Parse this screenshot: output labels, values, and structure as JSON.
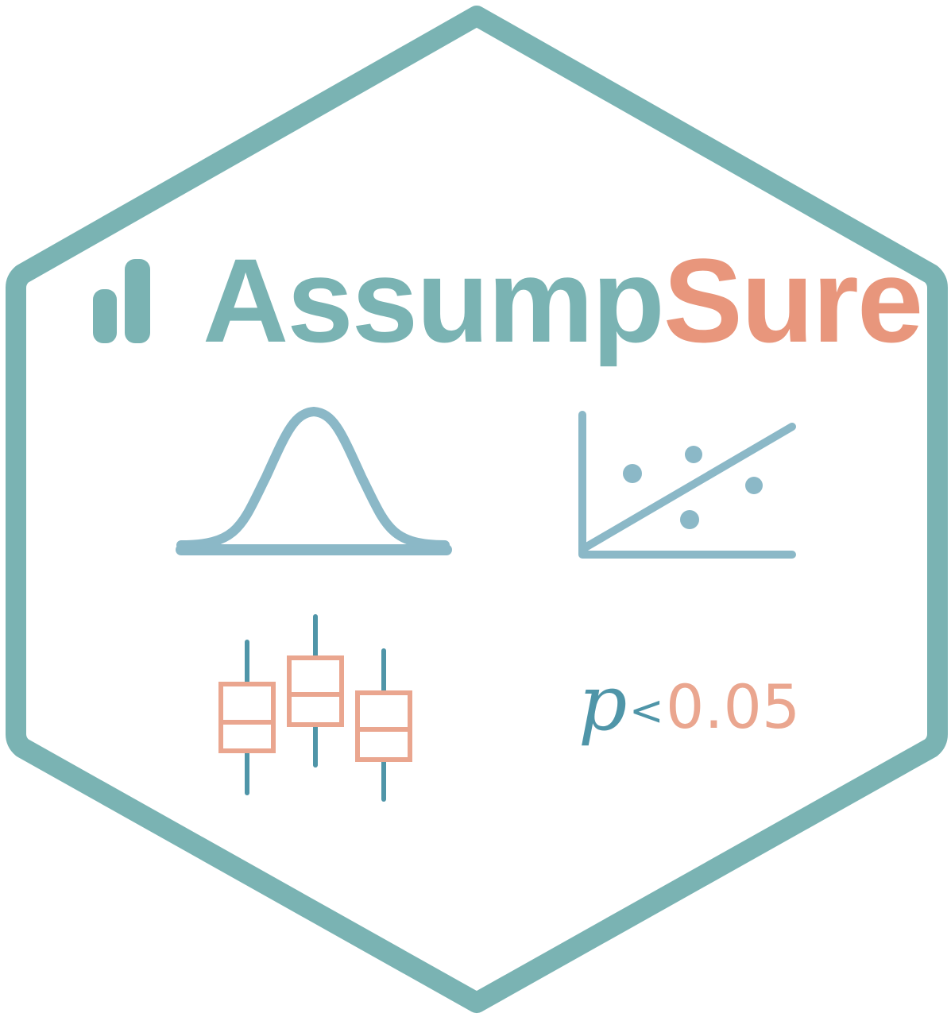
{
  "brand": {
    "name_part1": "Assump",
    "name_part2": "Sure",
    "icon": "bar-chart-icon"
  },
  "colors": {
    "teal": "#7ab3b3",
    "teal_icon": "#8bb8c7",
    "teal_dark": "#4f95a8",
    "salmon": "#e8967c",
    "salmon_light": "#eaa68f",
    "background": "#ffffff"
  },
  "icons": {
    "distribution": "normal-distribution-curve-icon",
    "scatter": "scatter-plot-regression-icon",
    "boxplot": "boxplot-icon"
  },
  "pvalue": {
    "symbol": "p",
    "operator": "<",
    "threshold": "0.05"
  }
}
